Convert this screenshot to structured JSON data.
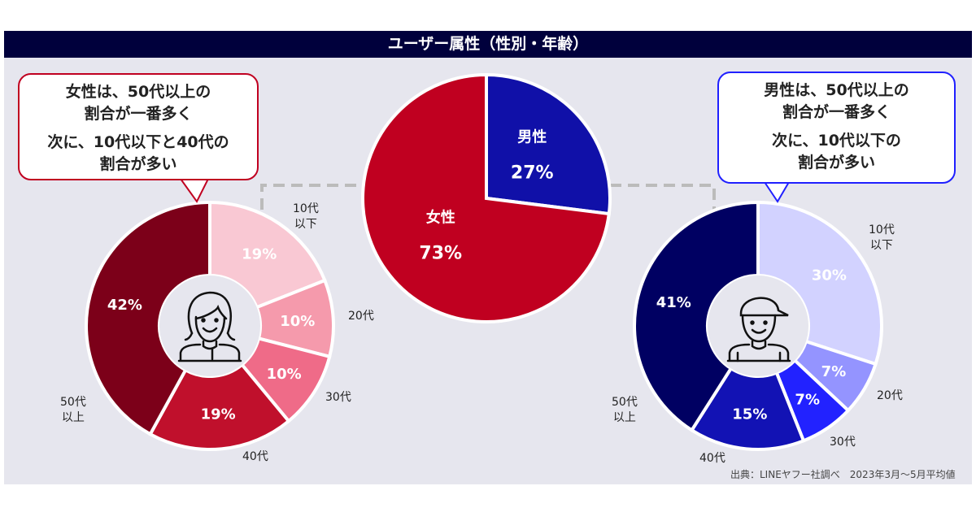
{
  "header": {
    "title": "ユーザー属性（性別・年齢）"
  },
  "callouts": {
    "female": {
      "lines": [
        "女性は、50代以上の",
        "割合が一番多く"
      ],
      "lines2": [
        "次に、10代以下と40代の",
        "割合が多い"
      ],
      "border": "#c00020"
    },
    "male": {
      "lines": [
        "男性は、50代以上の",
        "割合が一番多く"
      ],
      "lines2": [
        "次に、10代以下の",
        "割合が多い"
      ],
      "border": "#2020ff"
    }
  },
  "source": "出典：LINEヤフー社調べ　2023年3月～5月平均値",
  "chart_data": [
    {
      "type": "pie",
      "name": "gender",
      "categories": [
        "男性",
        "女性"
      ],
      "values": [
        27,
        73
      ],
      "labels": [
        "27%",
        "73%"
      ],
      "colors": [
        "#1010a8",
        "#c00020"
      ]
    },
    {
      "type": "pie",
      "subtype": "donut",
      "name": "female-age",
      "icon": "woman-icon",
      "categories": [
        "10代\n以下",
        "20代",
        "30代",
        "40代",
        "50代\n以上"
      ],
      "values": [
        19,
        10,
        10,
        19,
        42
      ],
      "labels": [
        "19%",
        "10%",
        "10%",
        "19%",
        "42%"
      ],
      "colors": [
        "#f9c8d3",
        "#f59aac",
        "#ef6b88",
        "#c0102c",
        "#7c0019"
      ]
    },
    {
      "type": "pie",
      "subtype": "donut",
      "name": "male-age",
      "icon": "man-cap-icon",
      "categories": [
        "10代\n以下",
        "20代",
        "30代",
        "40代",
        "50代\n以上"
      ],
      "values": [
        30,
        7,
        7,
        15,
        41
      ],
      "labels": [
        "30%",
        "7%",
        "7%",
        "15%",
        "41%"
      ],
      "colors": [
        "#d2d2ff",
        "#9494ff",
        "#2222ff",
        "#1212b4",
        "#000062"
      ]
    }
  ]
}
